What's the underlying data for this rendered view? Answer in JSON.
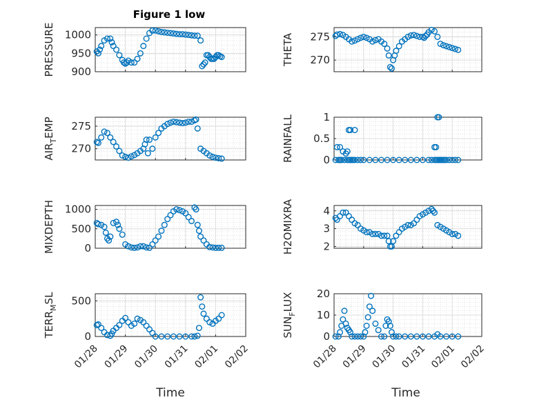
{
  "figure": {
    "title": "Figure 1 low"
  },
  "chart_data": [
    {
      "type": "scatter",
      "ylabel": "PRESSURE",
      "yticks": [
        "900",
        "950",
        "1000"
      ],
      "ylim": [
        900,
        1020
      ],
      "xticks": [
        "01/28",
        "01/29",
        "01/30",
        "01/31",
        "02/01",
        "02/02"
      ],
      "xlim": [
        0,
        5
      ],
      "grid": true,
      "x": [
        0.05,
        0.1,
        0.15,
        0.2,
        0.3,
        0.4,
        0.5,
        0.55,
        0.6,
        0.7,
        0.8,
        0.9,
        0.95,
        1.0,
        1.05,
        1.1,
        1.2,
        1.3,
        1.4,
        1.5,
        1.6,
        1.7,
        1.8,
        1.9,
        2.0,
        2.1,
        2.2,
        2.3,
        2.4,
        2.5,
        2.6,
        2.7,
        2.8,
        2.9,
        3.0,
        3.1,
        3.2,
        3.3,
        3.4,
        3.5,
        3.55,
        3.6,
        3.65,
        3.7,
        3.75,
        3.8,
        3.85,
        3.9,
        3.95,
        4.0,
        4.05,
        4.1,
        4.15,
        4.2
      ],
      "y": [
        955,
        950,
        960,
        970,
        985,
        990,
        990,
        980,
        970,
        960,
        945,
        932,
        925,
        922,
        925,
        930,
        925,
        925,
        935,
        950,
        970,
        990,
        1005,
        1012,
        1012,
        1010,
        1008,
        1007,
        1006,
        1005,
        1004,
        1003,
        1002,
        1002,
        1001,
        1000,
        999,
        998,
        998,
        985,
        915,
        920,
        925,
        945,
        945,
        940,
        935,
        935,
        935,
        940,
        945,
        945,
        942,
        940
      ]
    },
    {
      "type": "scatter",
      "ylabel": "THETA",
      "yticks": [
        "270",
        "275"
      ],
      "ylim": [
        267.5,
        277
      ],
      "xticks": [
        "01/28",
        "01/29",
        "01/30",
        "01/31",
        "02/01",
        "02/02"
      ],
      "xlim": [
        0,
        5
      ],
      "grid": true,
      "x": [
        0.05,
        0.1,
        0.2,
        0.3,
        0.4,
        0.5,
        0.6,
        0.7,
        0.8,
        0.9,
        1.0,
        1.1,
        1.2,
        1.3,
        1.4,
        1.5,
        1.6,
        1.7,
        1.8,
        1.85,
        1.9,
        1.95,
        2.0,
        2.05,
        2.1,
        2.2,
        2.3,
        2.4,
        2.5,
        2.6,
        2.7,
        2.8,
        2.9,
        3.0,
        3.05,
        3.1,
        3.15,
        3.2,
        3.3,
        3.4,
        3.5,
        3.6,
        3.7,
        3.8,
        3.9,
        4.0,
        4.1,
        4.2
      ],
      "y": [
        275.2,
        275.5,
        275.6,
        275.4,
        275.0,
        274.5,
        274.0,
        274.2,
        274.5,
        274.8,
        275.0,
        274.8,
        274.5,
        274.0,
        274.3,
        274.5,
        274.0,
        273.5,
        272.5,
        271.0,
        268.5,
        268.2,
        270.0,
        271.0,
        272.0,
        273.0,
        274.0,
        274.5,
        275.0,
        275.3,
        275.4,
        275.2,
        275.0,
        275.0,
        274.8,
        275.2,
        275.5,
        276.0,
        276.5,
        276.2,
        275.0,
        273.5,
        273.2,
        273.0,
        272.8,
        272.6,
        272.4,
        272.2
      ]
    },
    {
      "type": "scatter",
      "ylabel": "AIR_TEMP",
      "yticks": [
        "270",
        "275"
      ],
      "ylim": [
        267.5,
        277
      ],
      "xticks": [
        "01/28",
        "01/29",
        "01/30",
        "01/31",
        "02/01",
        "02/02"
      ],
      "xlim": [
        0,
        5
      ],
      "grid": true,
      "x": [
        0.05,
        0.1,
        0.2,
        0.3,
        0.4,
        0.5,
        0.6,
        0.7,
        0.8,
        0.9,
        1.0,
        1.1,
        1.2,
        1.3,
        1.4,
        1.5,
        1.6,
        1.65,
        1.7,
        1.75,
        1.8,
        1.9,
        2.0,
        2.1,
        2.2,
        2.3,
        2.4,
        2.5,
        2.6,
        2.7,
        2.8,
        2.9,
        3.0,
        3.1,
        3.2,
        3.3,
        3.35,
        3.4,
        3.5,
        3.6,
        3.7,
        3.8,
        3.9,
        4.0,
        4.1,
        4.2
      ],
      "y": [
        271.5,
        271.3,
        272.5,
        273.8,
        273.5,
        272.5,
        271.5,
        270.5,
        269.5,
        268.5,
        268.2,
        268.0,
        268.3,
        268.6,
        269.0,
        269.5,
        270.0,
        271.0,
        272.0,
        269.0,
        272.0,
        270.0,
        272.5,
        273.5,
        274.5,
        275.0,
        275.5,
        275.8,
        276.0,
        275.9,
        275.8,
        275.7,
        275.8,
        276.0,
        276.0,
        276.3,
        276.5,
        274.5,
        270.0,
        269.5,
        269.0,
        268.5,
        268.2,
        268.0,
        267.9,
        267.8
      ]
    },
    {
      "type": "scatter",
      "ylabel": "RAINFALL",
      "yticks": [
        "0",
        "0.5",
        "1"
      ],
      "ylim": [
        0,
        1
      ],
      "xticks": [
        "01/28",
        "01/29",
        "01/30",
        "01/31",
        "02/01",
        "02/02"
      ],
      "xlim": [
        0,
        5
      ],
      "grid": true,
      "x": [
        0.05,
        0.1,
        0.15,
        0.2,
        0.25,
        0.3,
        0.35,
        0.4,
        0.45,
        0.5,
        0.55,
        0.6,
        0.65,
        0.7,
        0.8,
        0.9,
        1.0,
        1.2,
        1.4,
        1.6,
        1.8,
        2.0,
        2.2,
        2.4,
        2.6,
        2.8,
        3.0,
        3.2,
        3.3,
        3.4,
        3.45,
        3.5,
        3.55,
        3.6,
        3.65,
        3.7,
        3.75,
        3.8,
        3.9,
        4.0,
        4.1,
        4.2,
        0.15,
        0.2,
        0.25,
        0.5,
        0.55,
        0.7,
        0.45,
        3.4,
        3.45,
        3.5,
        3.55
      ],
      "y": [
        0,
        0.3,
        0,
        0.3,
        0,
        0.2,
        0,
        0.15,
        0,
        0,
        0,
        0,
        0,
        0,
        0,
        0,
        0,
        0,
        0,
        0,
        0,
        0,
        0,
        0,
        0,
        0,
        0,
        0,
        0,
        0,
        0,
        0,
        0,
        0,
        0,
        0,
        0,
        0,
        0,
        0,
        0,
        0,
        0,
        0,
        0,
        0.7,
        0.7,
        0.7,
        0.2,
        0.3,
        0.3,
        1,
        1
      ]
    },
    {
      "type": "scatter",
      "ylabel": "MIXDEPTH",
      "yticks": [
        "0",
        "500",
        "1000"
      ],
      "ylim": [
        0,
        1100
      ],
      "xticks": [
        "01/28",
        "01/29",
        "01/30",
        "01/31",
        "02/01",
        "02/02"
      ],
      "xlim": [
        0,
        5
      ],
      "grid": true,
      "x": [
        0.05,
        0.1,
        0.2,
        0.3,
        0.35,
        0.4,
        0.45,
        0.5,
        0.6,
        0.7,
        0.75,
        0.8,
        0.9,
        1.0,
        1.1,
        1.2,
        1.3,
        1.4,
        1.5,
        1.6,
        1.7,
        1.8,
        1.9,
        2.0,
        2.1,
        2.2,
        2.3,
        2.4,
        2.5,
        2.6,
        2.7,
        2.8,
        2.9,
        3.0,
        3.1,
        3.2,
        3.3,
        3.35,
        3.4,
        3.45,
        3.5,
        3.6,
        3.7,
        3.8,
        3.9,
        4.0,
        4.1,
        4.2
      ],
      "y": [
        650,
        620,
        600,
        550,
        400,
        250,
        200,
        300,
        650,
        680,
        600,
        500,
        350,
        100,
        50,
        20,
        10,
        20,
        50,
        50,
        20,
        10,
        100,
        200,
        300,
        450,
        600,
        750,
        850,
        950,
        1000,
        980,
        950,
        900,
        800,
        700,
        1050,
        1000,
        600,
        450,
        300,
        200,
        100,
        30,
        20,
        10,
        10,
        10
      ]
    },
    {
      "type": "scatter",
      "ylabel": "H2OMIXRA",
      "yticks": [
        "2",
        "3",
        "4"
      ],
      "ylim": [
        1.9,
        4.3
      ],
      "xticks": [
        "01/28",
        "01/29",
        "01/30",
        "01/31",
        "02/01",
        "02/02"
      ],
      "xlim": [
        0,
        5
      ],
      "grid": true,
      "x": [
        0.05,
        0.1,
        0.2,
        0.3,
        0.4,
        0.5,
        0.6,
        0.7,
        0.8,
        0.9,
        1.0,
        1.1,
        1.2,
        1.3,
        1.4,
        1.5,
        1.6,
        1.7,
        1.8,
        1.85,
        1.9,
        1.95,
        2.0,
        2.1,
        2.2,
        2.3,
        2.4,
        2.5,
        2.6,
        2.7,
        2.8,
        2.9,
        3.0,
        3.1,
        3.2,
        3.3,
        3.35,
        3.4,
        3.5,
        3.6,
        3.7,
        3.8,
        3.9,
        4.0,
        4.1,
        4.2
      ],
      "y": [
        3.6,
        3.5,
        3.7,
        3.9,
        3.9,
        3.7,
        3.5,
        3.3,
        3.2,
        3.0,
        2.9,
        2.8,
        2.8,
        2.7,
        2.7,
        2.7,
        2.6,
        2.6,
        2.6,
        2.3,
        2.0,
        2.0,
        2.3,
        2.6,
        2.8,
        3.0,
        3.1,
        3.2,
        3.2,
        3.3,
        3.5,
        3.7,
        3.8,
        3.9,
        4.0,
        4.1,
        4.0,
        3.9,
        3.2,
        3.1,
        3.0,
        2.9,
        2.8,
        2.7,
        2.7,
        2.6
      ]
    },
    {
      "type": "scatter",
      "ylabel": "TERR_MSL",
      "yticks": [
        "0",
        "500"
      ],
      "ylim": [
        0,
        600
      ],
      "xticks": [
        "01/28",
        "01/29",
        "01/30",
        "01/31",
        "02/01",
        "02/02"
      ],
      "xlim": [
        0,
        5
      ],
      "grid": true,
      "x": [
        0.05,
        0.1,
        0.2,
        0.3,
        0.4,
        0.5,
        0.55,
        0.6,
        0.7,
        0.8,
        0.9,
        1.0,
        1.1,
        1.2,
        1.3,
        1.4,
        1.5,
        1.6,
        1.7,
        1.8,
        1.9,
        2.0,
        2.2,
        2.4,
        2.6,
        2.8,
        3.0,
        3.2,
        3.3,
        3.4,
        3.45,
        3.5,
        3.55,
        3.6,
        3.7,
        3.8,
        3.9,
        4.0,
        4.1,
        4.2
      ],
      "y": [
        160,
        170,
        120,
        60,
        20,
        10,
        40,
        80,
        120,
        160,
        220,
        260,
        200,
        150,
        180,
        250,
        230,
        200,
        150,
        100,
        50,
        0,
        0,
        0,
        0,
        0,
        0,
        0,
        0,
        10,
        120,
        550,
        420,
        320,
        250,
        200,
        180,
        220,
        250,
        300
      ]
    },
    {
      "type": "scatter",
      "ylabel": "SUN_FLUX",
      "yticks": [
        "0",
        "10",
        "20"
      ],
      "ylim": [
        0,
        20
      ],
      "xticks": [
        "01/28",
        "01/29",
        "01/30",
        "01/31",
        "02/01",
        "02/02"
      ],
      "xlim": [
        0,
        5
      ],
      "grid": true,
      "x": [
        0.05,
        0.15,
        0.2,
        0.25,
        0.3,
        0.35,
        0.4,
        0.45,
        0.5,
        0.55,
        0.6,
        0.7,
        0.8,
        0.9,
        1.0,
        1.05,
        1.1,
        1.15,
        1.2,
        1.25,
        1.3,
        1.4,
        1.5,
        1.6,
        1.7,
        1.75,
        1.8,
        1.85,
        1.9,
        1.95,
        2.0,
        2.1,
        2.2,
        2.4,
        2.6,
        2.8,
        3.0,
        3.2,
        3.4,
        3.5,
        3.6,
        3.8,
        4.0,
        4.2
      ],
      "y": [
        0,
        0,
        2,
        5,
        8,
        12,
        6,
        4,
        3,
        2,
        0,
        0,
        0,
        0,
        0,
        2,
        5,
        9,
        14,
        19,
        12,
        6,
        3,
        0,
        0,
        5,
        8,
        7,
        5,
        2,
        0,
        0,
        0,
        0,
        0,
        0,
        0,
        0,
        0,
        1,
        0,
        0,
        0,
        0
      ]
    }
  ],
  "xlabel": "Time",
  "colors": {
    "marker": "#0072BD",
    "grid": "#d0d0d0",
    "axis": "#262626"
  }
}
